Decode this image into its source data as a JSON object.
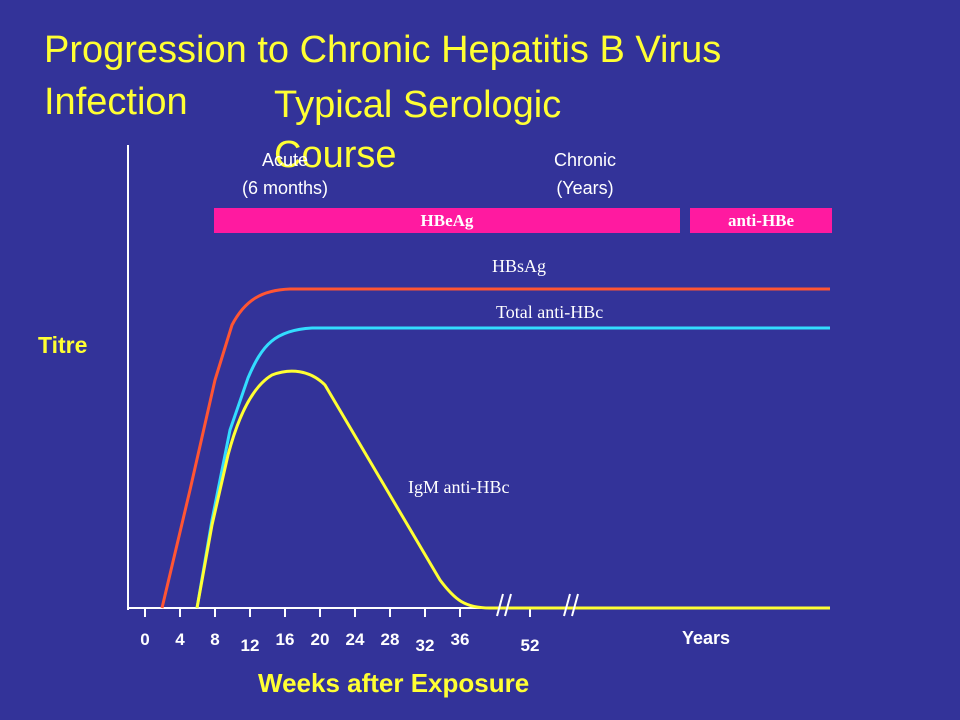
{
  "slide": {
    "title": "Progression to Chronic Hepatitis B Virus Infection",
    "subtitle": "Typical Serologic Course"
  },
  "colors": {
    "background": "#333399",
    "title": "#ffff33",
    "HBsAg": "#ff5533",
    "total_anti_HBc": "#33ddff",
    "IgM_anti_HBc": "#ffff33",
    "bars": "#ff1aa0"
  },
  "chart_data": {
    "type": "line",
    "ylabel": "Titre",
    "xlabel": "Weeks after Exposure",
    "x_unit_label": "Years",
    "x_ticks": [
      "0",
      "4",
      "8",
      "12",
      "16",
      "20",
      "24",
      "28",
      "32",
      "36",
      "52"
    ],
    "axis_break": "//",
    "phases": [
      {
        "label": "Acute",
        "sublabel": "(6 months)"
      },
      {
        "label": "Chronic",
        "sublabel": "(Years)"
      }
    ],
    "bars": [
      {
        "label": "HBeAg"
      },
      {
        "label": "anti-HBe"
      }
    ],
    "series": [
      {
        "name": "HBsAg",
        "color": "#ff5533"
      },
      {
        "name": "Total anti-HBc",
        "color": "#33ddff"
      },
      {
        "name": "IgM anti-HBc",
        "color": "#ffff33"
      }
    ]
  }
}
